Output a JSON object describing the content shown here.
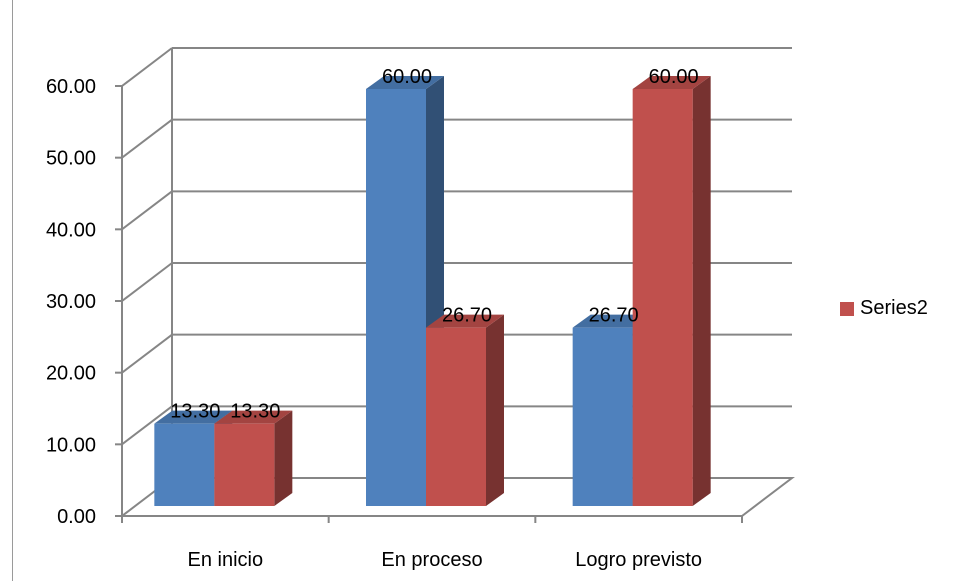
{
  "chart_data": {
    "type": "bar",
    "title": "",
    "xlabel": "",
    "ylabel": "",
    "categories": [
      "En inicio",
      "En proceso",
      "Logro previsto"
    ],
    "ylim": [
      0,
      60
    ],
    "y_ticks": [
      "0.00",
      "10.00",
      "20.00",
      "30.00",
      "40.00",
      "50.00",
      "60.00"
    ],
    "grid": true,
    "legend_position": "right",
    "series": [
      {
        "name": "",
        "color": "#4F81BD",
        "values": [
          13.3,
          60.0,
          26.7
        ],
        "labels": [
          "13.30",
          "60.00",
          "26.70"
        ]
      },
      {
        "name": "Series2",
        "color": "#C0504D",
        "values": [
          13.3,
          26.7,
          60.0
        ],
        "labels": [
          "13.30",
          "26.70",
          "60.00"
        ]
      }
    ]
  }
}
